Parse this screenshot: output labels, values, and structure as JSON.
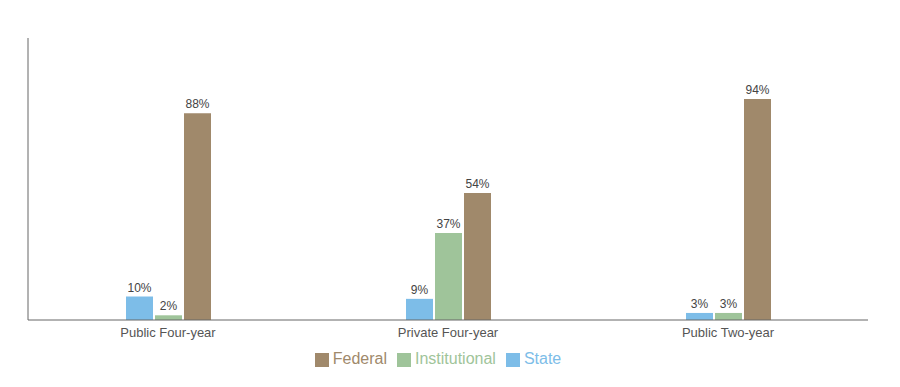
{
  "chart_data": {
    "type": "bar",
    "categories": [
      "Public Four-year",
      "Private Four-year",
      "Public Two-year"
    ],
    "series": [
      {
        "name": "State",
        "color": "#7dbde8",
        "values": [
          10,
          9,
          3
        ],
        "value_labels": [
          "10%",
          "9%",
          "3%"
        ]
      },
      {
        "name": "Institutional",
        "color": "#9fc49a",
        "values": [
          2,
          37,
          3
        ],
        "value_labels": [
          "2%",
          "37%",
          "3%"
        ]
      },
      {
        "name": "Federal",
        "color": "#a0896b",
        "values": [
          88,
          54,
          94
        ],
        "value_labels": [
          "88%",
          "54%",
          "94%"
        ]
      }
    ],
    "ylim": [
      0,
      120
    ],
    "data_labels": true,
    "tick_labels": "x",
    "legend": "bottom",
    "grid": false
  }
}
